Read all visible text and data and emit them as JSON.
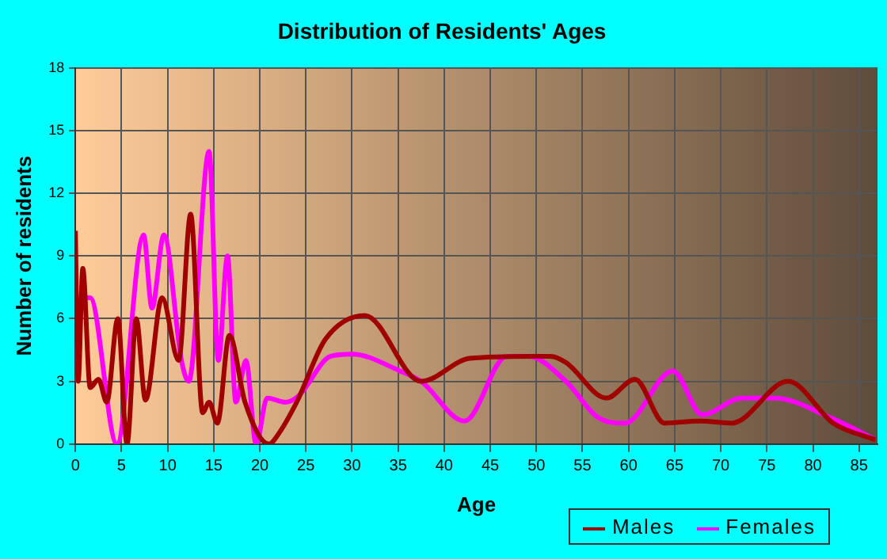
{
  "chart_data": {
    "type": "line",
    "title": "Distribution of Residents' Ages",
    "xlabel": "Age",
    "ylabel": "Number of residents",
    "xlim": [
      0,
      87
    ],
    "xticks": [
      0,
      5,
      10,
      15,
      20,
      25,
      30,
      35,
      40,
      45,
      50,
      55,
      60,
      65,
      70,
      75,
      80,
      85
    ],
    "ylim": [
      0,
      18
    ],
    "yticks": [
      0,
      3,
      6,
      9,
      12,
      15,
      18
    ],
    "grid": true,
    "legend": "bottom right",
    "marker": "none",
    "series": [
      {
        "name": "Males",
        "color": "#a00000",
        "x": [
          0,
          0.3,
          0.8,
          1.6,
          2.5,
          3.4,
          4.6,
          5.6,
          6.6,
          7.6,
          9.4,
          11.2,
          12.5,
          13.8,
          14.5,
          15.4,
          16.7,
          18.4,
          21,
          21.9,
          24,
          27.1,
          31.4,
          37.5,
          42.8,
          49.7,
          51.5,
          53.2,
          57.6,
          60.7,
          63.9,
          67.7,
          71.2,
          77.3,
          82.2,
          86.8
        ],
        "values": [
          10.2,
          3,
          8.4,
          2.7,
          3.1,
          2,
          6,
          0,
          6,
          2.1,
          7,
          4,
          11,
          1.5,
          2,
          1,
          5.2,
          2,
          0,
          0.4,
          2,
          5,
          6.15,
          3,
          4.1,
          4.2,
          4.2,
          3.9,
          2.2,
          3.1,
          1,
          1.1,
          1,
          3,
          1,
          0.2
        ]
      },
      {
        "name": "Females",
        "color": "#ff00ff",
        "x": [
          0,
          0.75,
          1.6,
          4.5,
          7.4,
          8.3,
          9.6,
          11.5,
          12.3,
          14.5,
          15.5,
          16.5,
          17.4,
          18.5,
          19.6,
          20.8,
          22.8,
          24.2,
          27.7,
          30,
          35.2,
          37.5,
          42.2,
          46.8,
          49.1,
          53.2,
          56.6,
          59.6,
          64.8,
          68,
          72.3,
          75.8,
          82.2,
          86.8
        ],
        "values": [
          3,
          7,
          7,
          0,
          10,
          6.5,
          10,
          4,
          3,
          14,
          4,
          9,
          2,
          4,
          0,
          2.2,
          2,
          2.3,
          4.2,
          4.3,
          3.5,
          3,
          1.1,
          4.2,
          4.2,
          3,
          1.3,
          1,
          3.5,
          1.4,
          2.2,
          2.2,
          1.2,
          0.2
        ]
      }
    ]
  }
}
